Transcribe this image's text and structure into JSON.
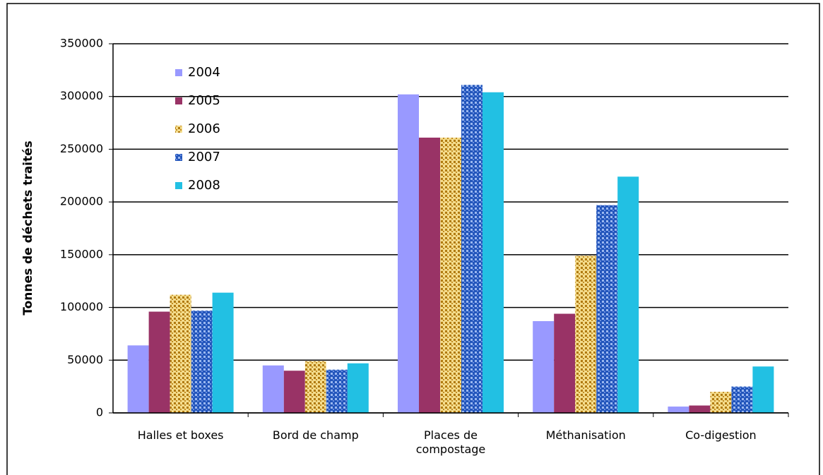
{
  "chart_data": {
    "type": "bar",
    "y_label": "Tonnes de déchets traités",
    "categories": [
      "Halles et boxes",
      "Bord de champ",
      "Places de\ncompostage",
      "Méthanisation",
      "Co-digestion"
    ],
    "series": [
      {
        "name": "2004",
        "color": "#9999ff",
        "values": [
          64000,
          45000,
          302000,
          87000,
          6000
        ]
      },
      {
        "name": "2005",
        "color": "#993366",
        "values": [
          96000,
          40000,
          261000,
          94000,
          7000
        ]
      },
      {
        "name": "2006",
        "color": "#d9a72a",
        "values": [
          112000,
          49000,
          261000,
          149000,
          20000
        ]
      },
      {
        "name": "2007",
        "color": "#3366cc",
        "values": [
          97000,
          41000,
          311000,
          197000,
          25000
        ]
      },
      {
        "name": "2008",
        "color": "#22c0e3",
        "values": [
          114000,
          47000,
          304000,
          224000,
          44000
        ]
      }
    ],
    "ylim": [
      0,
      350000
    ],
    "yticks": [
      0,
      50000,
      100000,
      150000,
      200000,
      250000,
      300000,
      350000
    ],
    "grid": true
  }
}
